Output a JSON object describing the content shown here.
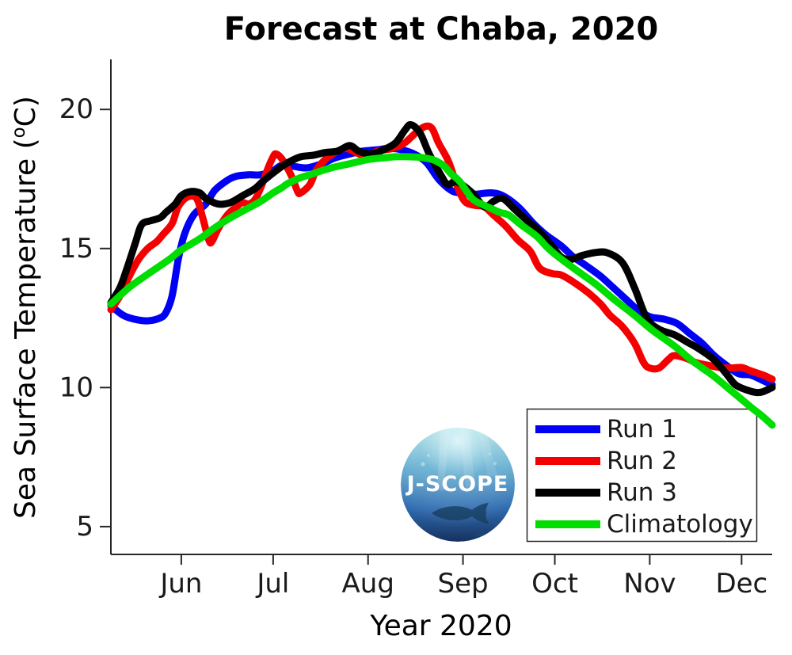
{
  "title": "Forecast at Chaba, 2020",
  "axes": {
    "xlabel": "Year 2020",
    "ylabel_prefix": "Sea Surface Temperature (",
    "ylabel_degree": "o",
    "ylabel_suffix": "C)"
  },
  "logo": {
    "text": "J-SCOPE"
  },
  "legend": {
    "items": [
      {
        "label": "Run 1",
        "color": "#0000f5"
      },
      {
        "label": "Run 2",
        "color": "#f40000"
      },
      {
        "label": "Run 3",
        "color": "#000000"
      },
      {
        "label": "Climatology",
        "color": "#00dd00"
      }
    ]
  },
  "chart_data": {
    "type": "line",
    "title": "Forecast at Chaba, 2020",
    "xlabel": "Year 2020",
    "ylabel": "Sea Surface Temperature (degC)",
    "x_axis": {
      "unit": "days from start of axis (mid-May 2020)",
      "domain": [
        0,
        216
      ],
      "tick_days": [
        23,
        53,
        84,
        115,
        145,
        176,
        206
      ],
      "tick_labels": [
        "Jun",
        "Jul",
        "Aug",
        "Sep",
        "Oct",
        "Nov",
        "Dec"
      ]
    },
    "y_axis": {
      "domain": [
        4,
        21.8
      ],
      "ticks": [
        5,
        10,
        15,
        20
      ],
      "grid": false
    },
    "legend_position": "lower-right",
    "series": [
      {
        "name": "Run 1",
        "color": "#0000f5",
        "points": [
          [
            0,
            12.95
          ],
          [
            4,
            12.6
          ],
          [
            8,
            12.45
          ],
          [
            12,
            12.4
          ],
          [
            16,
            12.5
          ],
          [
            18,
            12.7
          ],
          [
            20,
            13.3
          ],
          [
            22,
            14.6
          ],
          [
            24,
            15.5
          ],
          [
            27,
            16.2
          ],
          [
            31,
            16.6
          ],
          [
            34,
            17.1
          ],
          [
            38,
            17.45
          ],
          [
            41,
            17.6
          ],
          [
            45,
            17.65
          ],
          [
            49,
            17.65
          ],
          [
            53,
            17.8
          ],
          [
            56,
            18.0
          ],
          [
            60,
            17.95
          ],
          [
            64,
            17.9
          ],
          [
            69,
            18.05
          ],
          [
            73,
            18.25
          ],
          [
            78,
            18.4
          ],
          [
            82,
            18.5
          ],
          [
            87,
            18.55
          ],
          [
            91,
            18.6
          ],
          [
            95,
            18.55
          ],
          [
            99,
            18.4
          ],
          [
            103,
            18.1
          ],
          [
            107,
            17.5
          ],
          [
            111,
            17.1
          ],
          [
            114,
            17.0
          ],
          [
            119,
            16.95
          ],
          [
            124,
            17.0
          ],
          [
            128,
            16.9
          ],
          [
            133,
            16.5
          ],
          [
            138,
            15.9
          ],
          [
            142,
            15.5
          ],
          [
            147,
            15.1
          ],
          [
            151,
            14.7
          ],
          [
            155,
            14.4
          ],
          [
            160,
            14.0
          ],
          [
            164,
            13.6
          ],
          [
            168,
            13.2
          ],
          [
            172,
            12.8
          ],
          [
            176,
            12.55
          ],
          [
            181,
            12.45
          ],
          [
            185,
            12.3
          ],
          [
            189,
            11.95
          ],
          [
            193,
            11.6
          ],
          [
            197,
            11.15
          ],
          [
            201,
            10.8
          ],
          [
            205,
            10.5
          ],
          [
            209,
            10.45
          ],
          [
            213,
            10.25
          ],
          [
            216,
            10.1
          ]
        ]
      },
      {
        "name": "Run 2",
        "color": "#f40000",
        "points": [
          [
            0,
            12.8
          ],
          [
            3,
            13.3
          ],
          [
            6,
            14.0
          ],
          [
            9,
            14.6
          ],
          [
            12,
            15.0
          ],
          [
            15,
            15.25
          ],
          [
            17,
            15.5
          ],
          [
            20,
            15.9
          ],
          [
            22,
            16.5
          ],
          [
            25,
            16.85
          ],
          [
            28,
            16.8
          ],
          [
            30,
            16.1
          ],
          [
            32,
            15.3
          ],
          [
            33,
            15.25
          ],
          [
            35,
            15.7
          ],
          [
            38,
            16.2
          ],
          [
            41,
            16.5
          ],
          [
            43,
            16.65
          ],
          [
            45,
            16.6
          ],
          [
            47,
            16.75
          ],
          [
            49,
            17.2
          ],
          [
            51,
            17.8
          ],
          [
            53,
            18.3
          ],
          [
            54,
            18.4
          ],
          [
            56,
            18.2
          ],
          [
            59,
            17.6
          ],
          [
            61,
            17.05
          ],
          [
            62,
            17.0
          ],
          [
            65,
            17.3
          ],
          [
            67,
            17.8
          ],
          [
            70,
            18.2
          ],
          [
            74,
            18.5
          ],
          [
            77,
            18.6
          ],
          [
            80,
            18.45
          ],
          [
            84,
            18.3
          ],
          [
            87,
            18.5
          ],
          [
            92,
            18.6
          ],
          [
            96,
            18.8
          ],
          [
            100,
            19.2
          ],
          [
            103,
            19.4
          ],
          [
            105,
            19.3
          ],
          [
            107,
            18.8
          ],
          [
            110,
            18.2
          ],
          [
            112,
            17.6
          ],
          [
            114,
            17.0
          ],
          [
            116,
            16.65
          ],
          [
            119,
            16.55
          ],
          [
            122,
            16.5
          ],
          [
            125,
            16.2
          ],
          [
            129,
            15.8
          ],
          [
            133,
            15.3
          ],
          [
            137,
            14.9
          ],
          [
            140,
            14.3
          ],
          [
            144,
            14.1
          ],
          [
            147,
            14.05
          ],
          [
            151,
            13.8
          ],
          [
            156,
            13.4
          ],
          [
            160,
            13.0
          ],
          [
            163,
            12.6
          ],
          [
            167,
            12.2
          ],
          [
            171,
            11.6
          ],
          [
            174,
            10.9
          ],
          [
            176,
            10.7
          ],
          [
            179,
            10.7
          ],
          [
            182,
            11.0
          ],
          [
            184,
            11.15
          ],
          [
            188,
            11.05
          ],
          [
            191,
            10.9
          ],
          [
            195,
            10.8
          ],
          [
            199,
            10.72
          ],
          [
            202,
            10.7
          ],
          [
            206,
            10.72
          ],
          [
            209,
            10.6
          ],
          [
            213,
            10.45
          ],
          [
            216,
            10.3
          ]
        ]
      },
      {
        "name": "Run 3",
        "color": "#000000",
        "points": [
          [
            0,
            13.05
          ],
          [
            3,
            13.6
          ],
          [
            5,
            14.2
          ],
          [
            8,
            15.2
          ],
          [
            10,
            15.85
          ],
          [
            13,
            16.0
          ],
          [
            16,
            16.1
          ],
          [
            18,
            16.3
          ],
          [
            21,
            16.6
          ],
          [
            23,
            16.9
          ],
          [
            26,
            17.05
          ],
          [
            29,
            17.0
          ],
          [
            31,
            16.8
          ],
          [
            35,
            16.6
          ],
          [
            39,
            16.65
          ],
          [
            43,
            16.9
          ],
          [
            47,
            17.15
          ],
          [
            50,
            17.45
          ],
          [
            54,
            17.8
          ],
          [
            58,
            18.1
          ],
          [
            62,
            18.3
          ],
          [
            66,
            18.35
          ],
          [
            70,
            18.45
          ],
          [
            74,
            18.5
          ],
          [
            78,
            18.7
          ],
          [
            81,
            18.5
          ],
          [
            85,
            18.4
          ],
          [
            89,
            18.55
          ],
          [
            93,
            18.8
          ],
          [
            96,
            19.25
          ],
          [
            98,
            19.45
          ],
          [
            101,
            19.15
          ],
          [
            104,
            18.4
          ],
          [
            108,
            17.6
          ],
          [
            110,
            17.3
          ],
          [
            113,
            17.4
          ],
          [
            118,
            17.0
          ],
          [
            122,
            16.5
          ],
          [
            125,
            16.7
          ],
          [
            128,
            16.8
          ],
          [
            132,
            16.4
          ],
          [
            135,
            16.1
          ],
          [
            140,
            15.6
          ],
          [
            144,
            15.1
          ],
          [
            147,
            14.7
          ],
          [
            150,
            14.6
          ],
          [
            154,
            14.75
          ],
          [
            158,
            14.85
          ],
          [
            162,
            14.85
          ],
          [
            167,
            14.5
          ],
          [
            171,
            13.6
          ],
          [
            175,
            12.5
          ],
          [
            179,
            12.1
          ],
          [
            184,
            11.9
          ],
          [
            188,
            11.65
          ],
          [
            192,
            11.4
          ],
          [
            197,
            11.0
          ],
          [
            201,
            10.5
          ],
          [
            204,
            10.1
          ],
          [
            208,
            9.9
          ],
          [
            211,
            9.82
          ],
          [
            213,
            9.85
          ],
          [
            216,
            10.0
          ]
        ]
      },
      {
        "name": "Climatology",
        "color": "#00dd00",
        "points": [
          [
            0,
            13.0
          ],
          [
            6,
            13.6
          ],
          [
            13,
            14.15
          ],
          [
            19,
            14.6
          ],
          [
            23,
            14.95
          ],
          [
            29,
            15.35
          ],
          [
            34,
            15.75
          ],
          [
            39,
            16.1
          ],
          [
            44,
            16.4
          ],
          [
            49,
            16.7
          ],
          [
            53,
            17.0
          ],
          [
            56,
            17.2
          ],
          [
            58,
            17.35
          ],
          [
            62,
            17.55
          ],
          [
            65,
            17.65
          ],
          [
            69,
            17.8
          ],
          [
            72,
            17.9
          ],
          [
            76,
            18.0
          ],
          [
            80,
            18.1
          ],
          [
            84,
            18.2
          ],
          [
            88,
            18.25
          ],
          [
            93,
            18.3
          ],
          [
            97,
            18.3
          ],
          [
            101,
            18.28
          ],
          [
            105,
            18.2
          ],
          [
            107,
            18.1
          ],
          [
            109,
            17.95
          ],
          [
            111,
            17.7
          ],
          [
            114,
            17.4
          ],
          [
            118,
            16.8
          ],
          [
            121,
            16.6
          ],
          [
            124,
            16.45
          ],
          [
            127,
            16.3
          ],
          [
            130,
            16.2
          ],
          [
            134,
            15.85
          ],
          [
            139,
            15.45
          ],
          [
            142,
            15.1
          ],
          [
            145,
            14.8
          ],
          [
            151,
            14.3
          ],
          [
            158,
            13.75
          ],
          [
            164,
            13.2
          ],
          [
            171,
            12.6
          ],
          [
            177,
            12.05
          ],
          [
            184,
            11.5
          ],
          [
            190,
            10.95
          ],
          [
            197,
            10.4
          ],
          [
            203,
            9.85
          ],
          [
            209,
            9.3
          ],
          [
            213,
            8.95
          ],
          [
            216,
            8.65
          ]
        ]
      }
    ]
  }
}
